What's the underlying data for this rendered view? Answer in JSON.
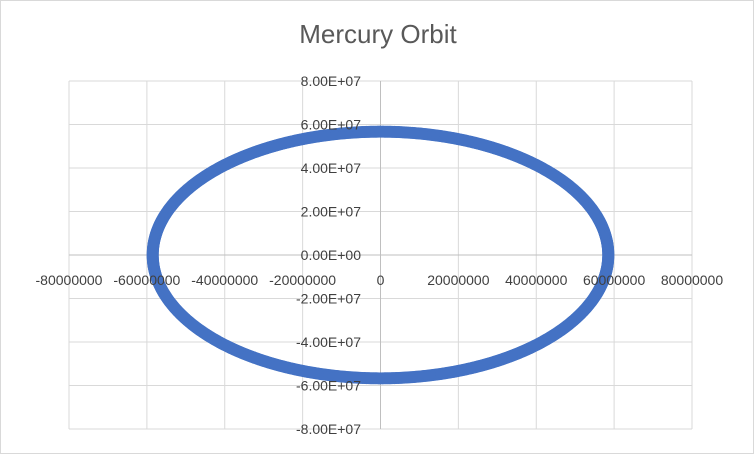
{
  "chart_data": {
    "type": "scatter",
    "title": "Mercury Orbit",
    "xlabel": "",
    "ylabel": "",
    "xlim": [
      -80000000,
      80000000
    ],
    "ylim": [
      -80000000,
      80000000
    ],
    "x_ticks": [
      -80000000,
      -60000000,
      -40000000,
      -20000000,
      0,
      20000000,
      40000000,
      60000000,
      80000000
    ],
    "x_tick_labels": [
      "-80000000",
      "-60000000",
      "-40000000",
      "-20000000",
      "0",
      "20000000",
      "40000000",
      "60000000",
      "80000000"
    ],
    "y_ticks": [
      80000000,
      60000000,
      40000000,
      20000000,
      0,
      -20000000,
      -40000000,
      -60000000,
      -80000000
    ],
    "y_tick_labels": [
      "8.00E+07",
      "6.00E+07",
      "4.00E+07",
      "2.00E+07",
      "0.00E+00",
      "-2.00E+07",
      "-4.00E+07",
      "-6.00E+07",
      "-8.00E+07"
    ],
    "grid": true,
    "legend": "none",
    "series": [
      {
        "marker": "circle",
        "color": "#4472c4",
        "shape": "ellipse",
        "center": [
          0,
          0
        ],
        "semi_axis_x": 58500000,
        "semi_axis_y": 56700000
      }
    ]
  }
}
